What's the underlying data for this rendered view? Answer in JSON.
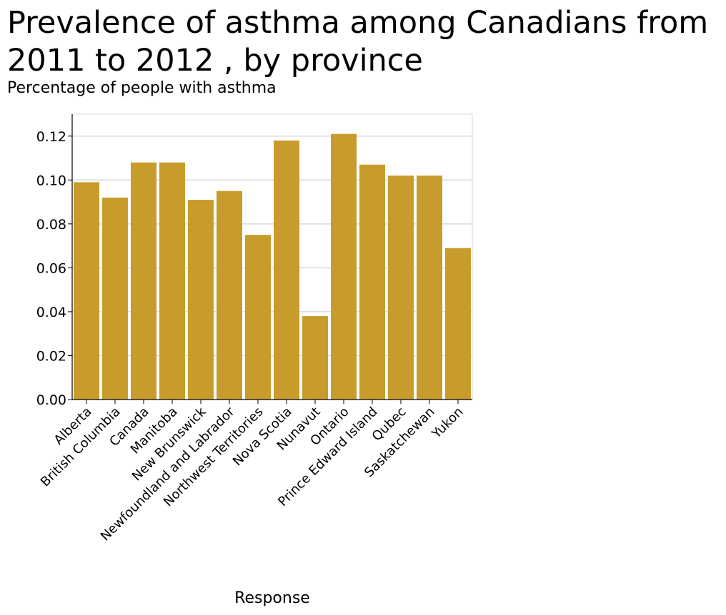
{
  "chart_data": {
    "type": "bar",
    "title": "Prevalence of asthma among Canadians from 2011 to 2012 , by province",
    "subtitle": "Percentage of people with asthma",
    "xlabel": "Response",
    "ylabel": "",
    "categories": [
      "Alberta",
      "British Columbia",
      "Canada",
      "Manitoba",
      "New Brunswick",
      "Newfoundland and Labrador",
      "Northwest Territories",
      "Nova Scotia",
      "Nunavut",
      "Ontario",
      "Prince Edward Island",
      "Qubec",
      "Saskatchewan",
      "Yukon"
    ],
    "values": [
      0.099,
      0.092,
      0.108,
      0.108,
      0.091,
      0.095,
      0.075,
      0.118,
      0.038,
      0.121,
      0.107,
      0.102,
      0.102,
      0.069
    ],
    "yticks": [
      "0.00",
      "0.02",
      "0.04",
      "0.06",
      "0.08",
      "0.10",
      "0.12"
    ],
    "ylim": [
      0,
      0.13
    ],
    "grid": true,
    "colors": {
      "bar": "#c89c2c",
      "grid": "#d9d9d9",
      "axis": "#000000"
    }
  }
}
